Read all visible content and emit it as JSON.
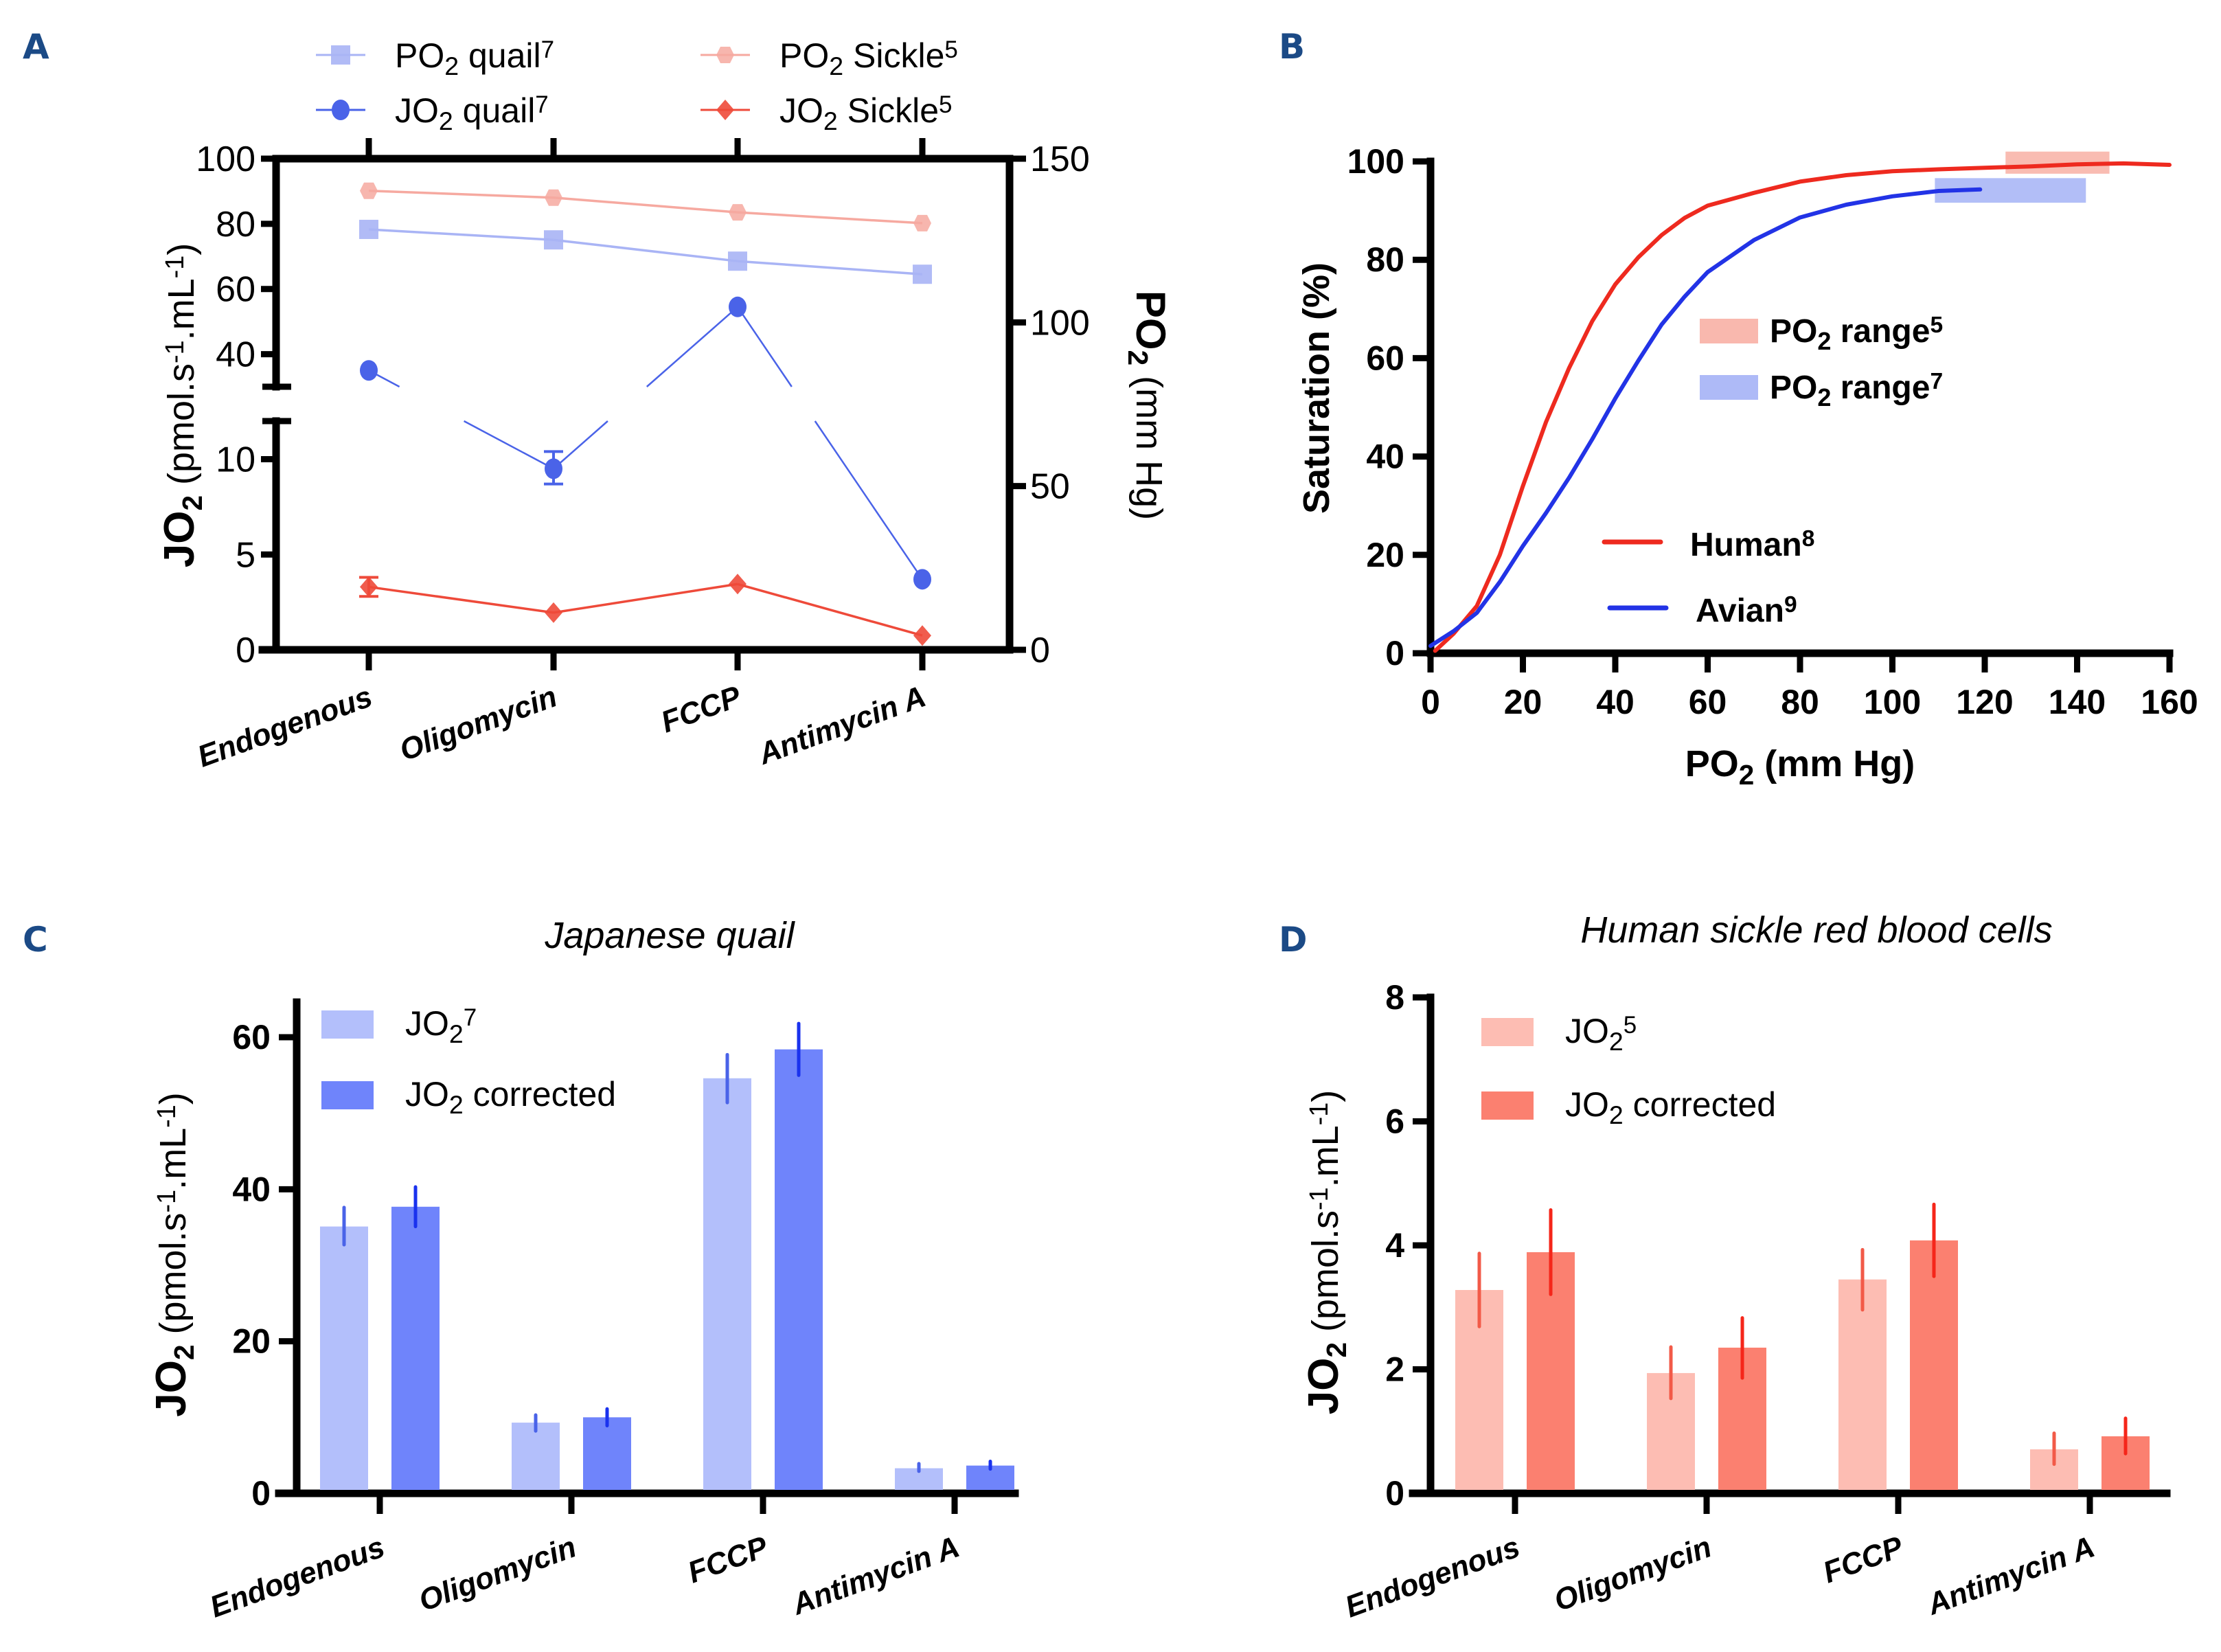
{
  "panel_labels": {
    "a": "A",
    "b": "B",
    "c": "C",
    "d": "D"
  },
  "colors": {
    "quail_po2": "#a9b4f5",
    "quail_jo2": "#4a63e8",
    "sickle_po2": "#f6a9a0",
    "sickle_jo2": "#ee4a3a",
    "human_curve": "#ee2a1f",
    "avian_curve": "#2233e6",
    "range5": "#f9b8ae",
    "range7": "#aebaf7",
    "bar_quail_light": "#b3bffb",
    "bar_quail_dark": "#6f84fb",
    "err_quail_light": "#4a63e8",
    "err_quail_dark": "#1a32ee",
    "bar_sickle_light": "#fdbdb3",
    "bar_sickle_dark": "#fb8070",
    "err_sickle_light": "#f25a48",
    "err_sickle_dark": "#f5261a",
    "panel_label": "#1b4a86"
  },
  "chart_data": [
    {
      "id": "A",
      "type": "line",
      "categories": [
        "Endogenous",
        "Oligomycin",
        "FCCP",
        "Antimycin A"
      ],
      "left_axis": {
        "label_main": "JO",
        "label_sub": "2",
        "label_rest": " (pmol.s",
        "label_sup1": "-1",
        "label_mid": ".mL",
        "label_sup2": "-1",
        "label_end": ")",
        "broken": true,
        "lower_segment": {
          "range": [
            0,
            12
          ],
          "ticks": [
            "0",
            "5",
            "10"
          ]
        },
        "upper_segment": {
          "range": [
            30,
            100
          ],
          "ticks": [
            "40",
            "60",
            "80",
            "100"
          ]
        }
      },
      "right_axis": {
        "label_main": "PO",
        "label_sub": "2",
        "label_rest": " (mm Hg)",
        "range": [
          0,
          150
        ],
        "ticks": [
          "0",
          "50",
          "100",
          "150"
        ]
      },
      "legend": [
        {
          "key": "po2_quail",
          "text": "PO",
          "sub": "2",
          "rest": " quail",
          "sup": "7"
        },
        {
          "key": "jo2_quail",
          "text": "JO",
          "sub": "2",
          "rest": " quail",
          "sup": "7"
        },
        {
          "key": "po2_sickle",
          "text": "PO",
          "sub": "2",
          "rest": " Sickle",
          "sup": "5"
        },
        {
          "key": "jo2_sickle",
          "text": "JO",
          "sub": "2",
          "rest": " Sickle",
          "sup": "5"
        }
      ],
      "series": [
        {
          "key": "po2_sickle",
          "name": "PO2 Sickle5",
          "axis": "right",
          "marker": "hexagon",
          "values": [
            140.2,
            138.1,
            133.6,
            130.3
          ]
        },
        {
          "key": "po2_quail",
          "name": "PO2 quail7",
          "axis": "right",
          "marker": "square",
          "values": [
            128.4,
            125.2,
            118.7,
            114.7
          ]
        },
        {
          "key": "jo2_quail",
          "name": "JO2 quail7",
          "axis": "left",
          "marker": "circle",
          "values": [
            35.0,
            9.5,
            54.5,
            3.7
          ],
          "error_bars": [
            null,
            [
              8.7,
              10.4
            ],
            null,
            null
          ]
        },
        {
          "key": "jo2_sickle",
          "name": "JO2 Sickle5",
          "axis": "left",
          "marker": "diamond",
          "values": [
            3.3,
            1.95,
            3.45,
            0.75
          ],
          "error_bars": [
            [
              2.8,
              3.8
            ],
            null,
            null,
            null
          ]
        }
      ]
    },
    {
      "id": "B",
      "type": "line",
      "xlabel_main": "PO",
      "xlabel_sub": "2",
      "xlabel_rest": " (mm Hg)",
      "ylabel": "Saturation (%)",
      "xlim": [
        0,
        160
      ],
      "ylim": [
        0,
        100
      ],
      "xticks": [
        "0",
        "20",
        "40",
        "60",
        "80",
        "100",
        "120",
        "140",
        "160"
      ],
      "yticks": [
        "0",
        "20",
        "40",
        "60",
        "80",
        "100"
      ],
      "series": [
        {
          "key": "human",
          "name": "Human",
          "sup": "8",
          "x": [
            1,
            5,
            10,
            15,
            20,
            25,
            30,
            35,
            40,
            45,
            50,
            55,
            60,
            70,
            80,
            90,
            100,
            110,
            120,
            130,
            140,
            150,
            160
          ],
          "y": [
            0.5,
            4,
            9.6,
            20,
            34,
            47,
            58,
            67.5,
            75,
            80.5,
            85,
            88.5,
            91,
            93.6,
            95.9,
            97.2,
            98,
            98.4,
            98.7,
            99,
            99.4,
            99.6,
            99.3
          ]
        },
        {
          "key": "avian",
          "name": "Avian",
          "sup": "9",
          "x": [
            0,
            5,
            10,
            15,
            20,
            25,
            30,
            35,
            40,
            45,
            50,
            55,
            60,
            70,
            80,
            90,
            100,
            110,
            119
          ],
          "y": [
            1.5,
            4.5,
            8.2,
            14.5,
            21.8,
            28.5,
            35.7,
            43.5,
            51.8,
            59.5,
            66.8,
            72.5,
            77.5,
            84,
            88.6,
            91.2,
            92.9,
            94,
            94.3
          ]
        }
      ],
      "ranges": [
        {
          "key": "range5",
          "name": "PO2 range",
          "sup": "5",
          "x": [
            124.5,
            147
          ],
          "y": [
            97.5,
            102
          ]
        },
        {
          "key": "range7",
          "name": "PO2 range",
          "sup": "7",
          "x": [
            109.2,
            141.9
          ],
          "y": [
            91.6,
            96.6
          ]
        }
      ]
    },
    {
      "id": "C",
      "type": "bar",
      "title": "Japanese quail",
      "categories": [
        "Endogenous",
        "Oligomycin",
        "FCCP",
        "Antimycin A"
      ],
      "ylim": [
        0,
        65
      ],
      "yticks": [
        "0",
        "20",
        "40",
        "60"
      ],
      "ylabel_main": "JO",
      "ylabel_sub": "2",
      "legend": [
        {
          "text": "JO",
          "sub": "2",
          "sup": "7",
          "rest": ""
        },
        {
          "text": "JO",
          "sub": "2",
          "sup": "",
          "rest": " corrected"
        }
      ],
      "series": [
        {
          "name": "JO2 (ref 7)",
          "values": [
            35.1,
            9.3,
            54.6,
            3.3
          ],
          "err_low": [
            32.7,
            8.2,
            51.4,
            2.9
          ],
          "err_high": [
            37.6,
            10.3,
            57.7,
            3.9
          ]
        },
        {
          "name": "JO2 corrected",
          "values": [
            37.7,
            10.0,
            58.4,
            3.65
          ],
          "err_low": [
            35.1,
            8.9,
            55.0,
            3.2
          ],
          "err_high": [
            40.3,
            11.1,
            61.8,
            4.2
          ]
        }
      ]
    },
    {
      "id": "D",
      "type": "bar",
      "title": "Human sickle red blood cells",
      "categories": [
        "Endogenous",
        "Oligomycin",
        "FCCP",
        "Antimycin A"
      ],
      "ylim": [
        0,
        8
      ],
      "yticks": [
        "0",
        "2",
        "4",
        "6",
        "8"
      ],
      "ylabel_main": "JO",
      "ylabel_sub": "2",
      "legend": [
        {
          "text": "JO",
          "sub": "2",
          "sup": "5",
          "rest": ""
        },
        {
          "text": "JO",
          "sub": "2",
          "sup": "",
          "rest": " corrected"
        }
      ],
      "series": [
        {
          "name": "JO2 (ref 5)",
          "values": [
            3.28,
            1.94,
            3.45,
            0.71
          ],
          "err_low": [
            2.69,
            1.53,
            2.96,
            0.47
          ],
          "err_high": [
            3.87,
            2.36,
            3.93,
            0.97
          ]
        },
        {
          "name": "JO2 corrected",
          "values": [
            3.89,
            2.35,
            4.08,
            0.92
          ],
          "err_low": [
            3.21,
            1.86,
            3.5,
            0.64
          ],
          "err_high": [
            4.57,
            2.83,
            4.66,
            1.21
          ]
        }
      ]
    }
  ]
}
